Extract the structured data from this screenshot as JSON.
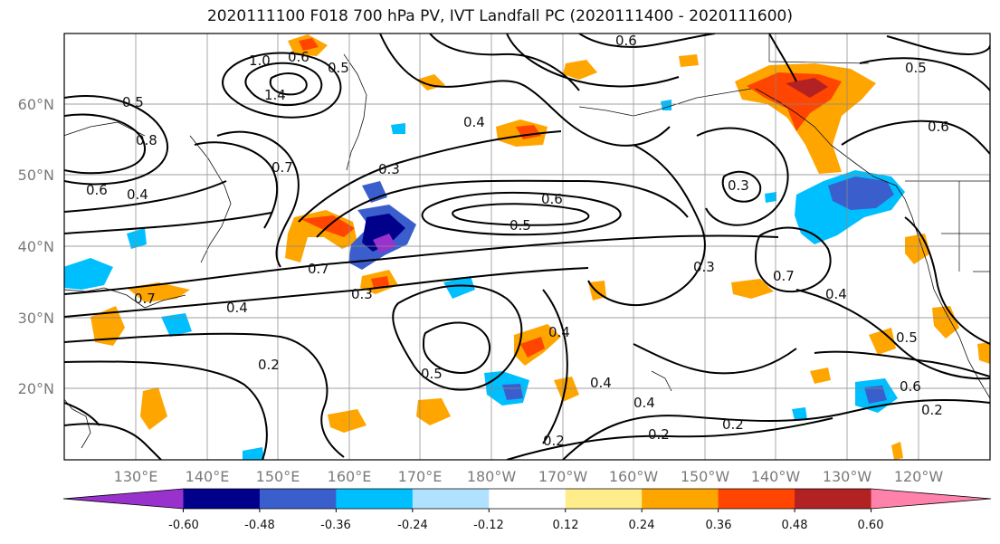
{
  "title": "2020111100 F018 700 hPa PV, IVT Landfall PC (2020111400 - 2020111600)",
  "lat_labels": [
    "60°N",
    "50°N",
    "40°N",
    "30°N",
    "20°N"
  ],
  "lon_labels": [
    "130°E",
    "140°E",
    "150°E",
    "160°E",
    "170°E",
    "180°W",
    "170°W",
    "160°W",
    "150°W",
    "140°W",
    "130°W",
    "120°W"
  ],
  "contour_labels": [
    "0.6",
    "1.0",
    "0.6",
    "0.5",
    "1.4",
    "0.5",
    "0.8",
    "0.7",
    "0.6",
    "0.4",
    "0.4",
    "0.3",
    "0.6",
    "0.5",
    "0.7",
    "0.3",
    "0.7",
    "0.3",
    "0.4",
    "0.5",
    "0.4",
    "0.2",
    "0.4",
    "0.4",
    "0.2",
    "0.2",
    "0.2",
    "0.6",
    "0.5",
    "0.2",
    "0.3",
    "0.4",
    "0.6",
    "0.7",
    "0.5"
  ],
  "colorbar": {
    "colors": [
      "#9932cc",
      "#00008b",
      "#3a5fcd",
      "#00bfff",
      "#b0e2ff",
      "#ffffff",
      "#ffec8b",
      "#ffa500",
      "#ff4500",
      "#b22222",
      "#ff82ab"
    ],
    "tick_labels": [
      "-0.60",
      "-0.48",
      "-0.36",
      "-0.24",
      "-0.12",
      "0.12",
      "0.24",
      "0.36",
      "0.48",
      "0.60"
    ]
  }
}
